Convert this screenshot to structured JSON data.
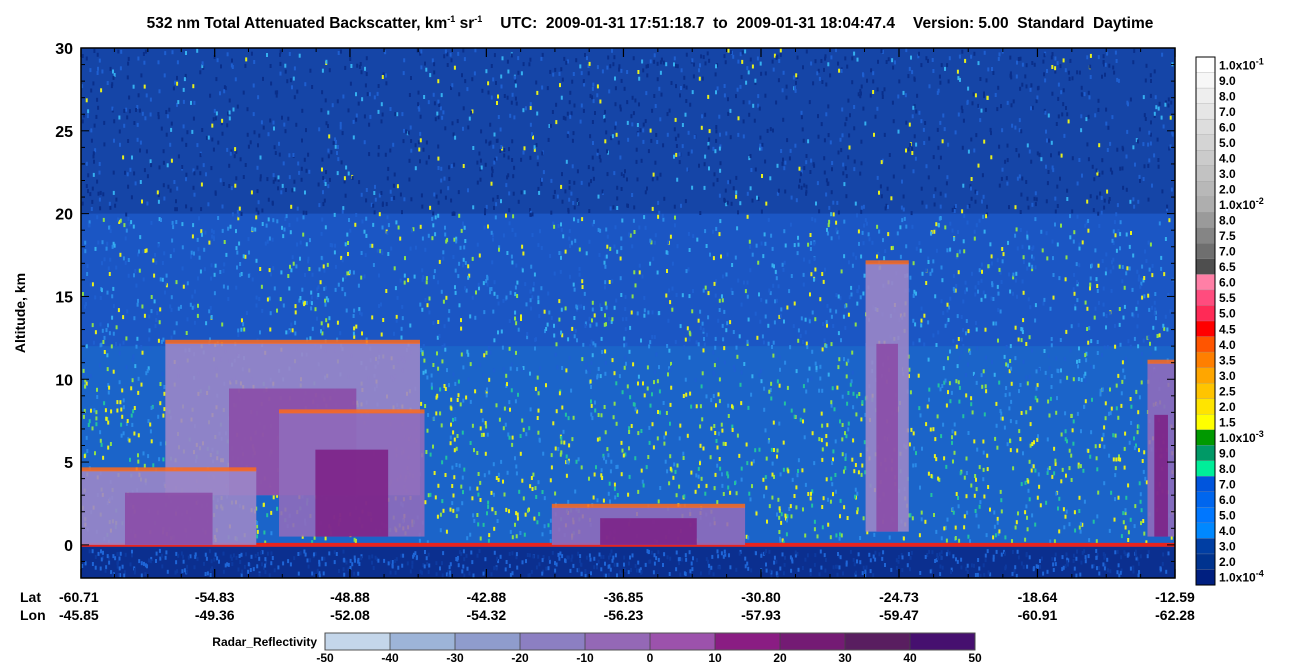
{
  "chart_data": {
    "type": "heatmap",
    "title": {
      "prefix": "532 nm Total Attenuated Backscatter, km",
      "exp1": "-1",
      "mid": " sr",
      "exp2": "-1",
      "utc_label": "UTC:",
      "utc_start": "2009-01-31 17:51:18.7",
      "to": "to",
      "utc_end": "2009-01-31 18:04:47.4",
      "version": "Version: 5.00",
      "product": "Standard",
      "time_of_day": "Daytime"
    },
    "ylabel": "Altitude, km",
    "ylim": [
      -2,
      30
    ],
    "yticks": [
      "30",
      "25",
      "20",
      "15",
      "10",
      "5",
      "0"
    ],
    "xaxis": {
      "lat_label": "Lat",
      "lon_label": "Lon",
      "lat": [
        "-60.71",
        "-54.83",
        "-48.88",
        "-42.88",
        "-36.85",
        "-30.80",
        "-24.73",
        "-18.64",
        "-12.59"
      ],
      "lon": [
        "-45.85",
        "-49.36",
        "-52.08",
        "-54.32",
        "-56.23",
        "-57.93",
        "-59.47",
        "-60.91",
        "-62.28"
      ]
    },
    "colorbar": {
      "labels": [
        "1.0x10-1",
        "9.0",
        "8.0",
        "7.0",
        "6.0",
        "5.0",
        "4.0",
        "3.0",
        "2.0",
        "1.0x10-2",
        "8.0",
        "7.5",
        "7.0",
        "6.5",
        "6.0",
        "5.5",
        "5.0",
        "4.5",
        "4.0",
        "3.5",
        "3.0",
        "2.5",
        "2.0",
        "1.5",
        "1.0x10-3",
        "9.0",
        "8.0",
        "7.0",
        "6.0",
        "5.0",
        "4.0",
        "3.0",
        "2.0",
        "1.0x10-4"
      ],
      "colors": [
        "#ffffff",
        "#f7f7f7",
        "#eeeeee",
        "#e6e6e6",
        "#dddddd",
        "#d4d4d4",
        "#cbcbcb",
        "#c2c2c2",
        "#b8b8b8",
        "#aeaeae",
        "#9a9a9a",
        "#858585",
        "#6f6f6f",
        "#4e4e4e",
        "#ff7fa6",
        "#ff4c7e",
        "#ff2a56",
        "#ff0000",
        "#ff5500",
        "#ff7f00",
        "#ffa600",
        "#ffc400",
        "#ffe400",
        "#ffff00",
        "#009900",
        "#009966",
        "#00ee99",
        "#0055dd",
        "#0066ee",
        "#0077ff",
        "#0088ff",
        "#003ea3",
        "#00338f",
        "#001f80"
      ]
    },
    "radar": {
      "label": "Radar_Reflectivity",
      "ticks": [
        "-50",
        "-40",
        "-30",
        "-20",
        "-10",
        "0",
        "10",
        "20",
        "30",
        "40",
        "50"
      ],
      "colors": [
        "#c4d6ea",
        "#9db4d8",
        "#8f9ccd",
        "#8c7fc2",
        "#9468b6",
        "#9c52ac",
        "#8a1d83",
        "#741b74",
        "#591e60",
        "#46106f"
      ]
    },
    "features": [
      {
        "name": "cirrus-anvil-left",
        "x0": -57.0,
        "x1": -45.8,
        "ybot": 3.0,
        "ytop": 12.2
      },
      {
        "name": "convective-core-left",
        "x0": -52.0,
        "x1": -45.6,
        "ybot": 0.5,
        "ytop": 8.0
      },
      {
        "name": "deep-convection-right",
        "x0": -26.2,
        "x1": -24.3,
        "ybot": 0.8,
        "ytop": 17.0
      },
      {
        "name": "edge-convection",
        "x0": -13.8,
        "x1": -12.6,
        "ybot": 0.5,
        "ytop": 11.0
      },
      {
        "name": "low-clouds-left",
        "x0": -60.7,
        "x1": -53.0,
        "ybot": 0.0,
        "ytop": 4.5
      },
      {
        "name": "low-clouds-mid",
        "x0": -40.0,
        "x1": -31.5,
        "ybot": 0.0,
        "ytop": 2.3
      }
    ]
  }
}
